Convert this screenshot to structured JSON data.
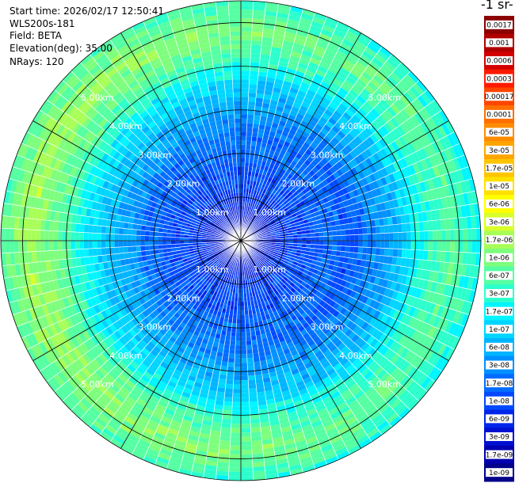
{
  "info": {
    "start_time": "Start time: 2026/02/17 12:50:41",
    "instrument": "WLS200s-181",
    "field": "Field: BETA",
    "elevation": "Elevation(deg): 35.00",
    "nrays": "NRays: 120"
  },
  "colorbar": {
    "title": "-1 sr-",
    "labels": [
      "0.0017",
      "0.001",
      "0.0006",
      "0.0003",
      "0.00017",
      "0.0001",
      "6e-05",
      "3e-05",
      "1.7e-05",
      "1e-05",
      "6e-06",
      "3e-06",
      "1.7e-06",
      "1e-06",
      "6e-07",
      "3e-07",
      "1.7e-07",
      "1e-07",
      "6e-08",
      "3e-08",
      "1.7e-08",
      "1e-08",
      "6e-09",
      "3e-09",
      "1.7e-09",
      "1e-09"
    ],
    "colors": [
      "#8b0000",
      "#b00000",
      "#d40000",
      "#ff1a00",
      "#ff4500",
      "#ff6f00",
      "#ff8c00",
      "#ffa500",
      "#ffc400",
      "#ffe000",
      "#ffff00",
      "#d8ff2b",
      "#a8ff57",
      "#7dff7d",
      "#55ffa2",
      "#2cffcc",
      "#00f5ff",
      "#00d5ff",
      "#00b4ff",
      "#0090ff",
      "#006cff",
      "#0049ff",
      "#0026ea",
      "#0010d0",
      "#0000b0",
      "#00008a"
    ]
  },
  "chart_data": {
    "type": "polar_ppi",
    "field": "BETA",
    "elevation_deg": 35.0,
    "n_rays": 120,
    "range_rings_km": [
      1.0,
      2.0,
      3.0,
      4.0,
      5.0
    ],
    "range_ring_labels": [
      "1.00km",
      "2.00km",
      "3.00km",
      "4.00km",
      "5.00km"
    ],
    "spoke_angles_deg": [
      0,
      30,
      60,
      90,
      120,
      150,
      180,
      210,
      240,
      270,
      300,
      330
    ],
    "max_range_km": 5.5,
    "range_bin_km": 0.1,
    "color_scale": "log",
    "color_range": [
      1e-09,
      0.0017
    ],
    "radial_profile": {
      "range_km": [
        0.0,
        0.4,
        0.8,
        1.2,
        1.6,
        2.0,
        2.4,
        2.8,
        3.2,
        3.6,
        4.0,
        4.4,
        4.8,
        5.2,
        5.5
      ],
      "typical_color_index": [
        24,
        23,
        22,
        21,
        21,
        20,
        20,
        19,
        18,
        17,
        15,
        14,
        13,
        14,
        15
      ]
    }
  }
}
